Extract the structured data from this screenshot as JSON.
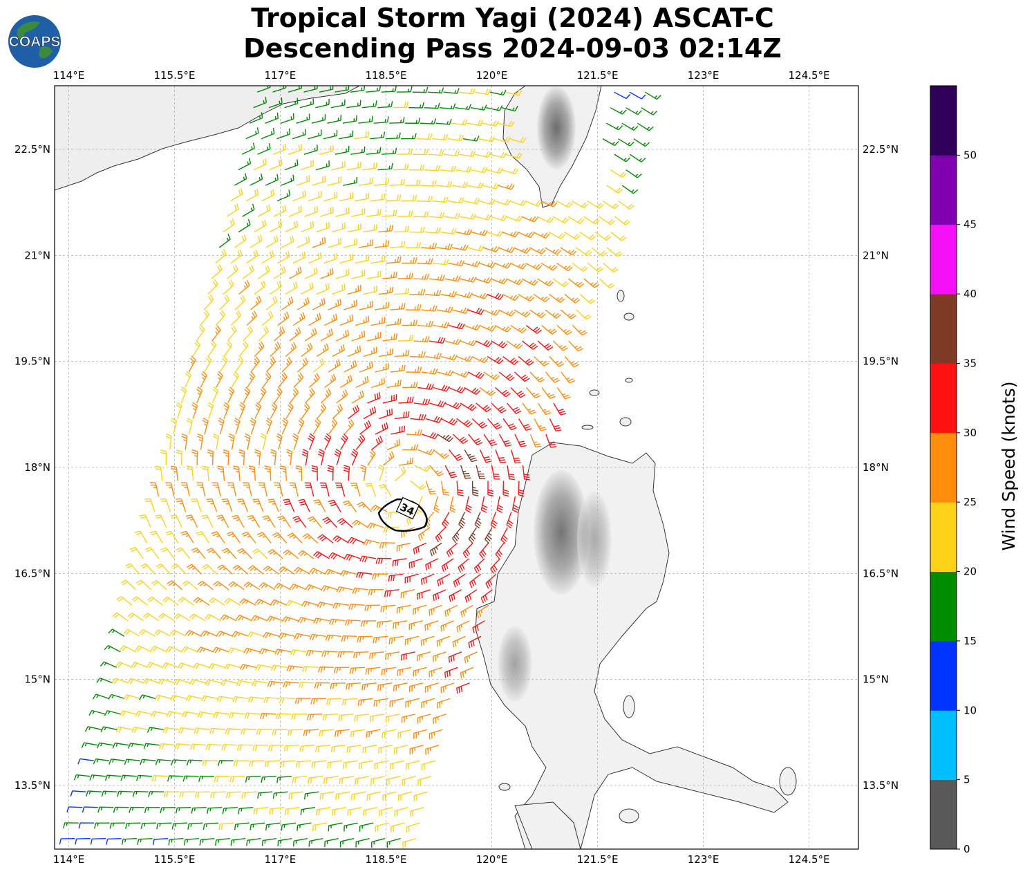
{
  "title": {
    "line1": "Tropical Storm Yagi (2024) ASCAT-C",
    "line2": "Descending Pass 2024-09-03 02:14Z"
  },
  "logo": {
    "text": "COAPS",
    "icon": "globe-logo-icon"
  },
  "map": {
    "lon_range": [
      113.8,
      125.2
    ],
    "lat_range": [
      12.6,
      23.4
    ],
    "lon_ticks": [
      "114°E",
      "115.5°E",
      "117°E",
      "118.5°E",
      "120°E",
      "121.5°E",
      "123°E",
      "124.5°E"
    ],
    "lat_ticks": [
      "22.5°N",
      "21°N",
      "19.5°N",
      "18°N",
      "16.5°N",
      "15°N",
      "13.5°N"
    ],
    "gridlines": true,
    "storm_center": {
      "lon": 118.75,
      "lat": 17.65
    },
    "wind_radius_label": "34"
  },
  "colorbar": {
    "label": "Wind Speed (knots)",
    "ticks": [
      "0",
      "5",
      "10",
      "15",
      "20",
      "25",
      "30",
      "35",
      "40",
      "45",
      "50"
    ],
    "colors": [
      "#595959",
      "#00bfff",
      "#0033ff",
      "#008c00",
      "#ffd21a",
      "#ff8c0a",
      "#ff1111",
      "#7f3a26",
      "#f70ff7",
      "#8000b0",
      "#2e0059"
    ]
  }
}
